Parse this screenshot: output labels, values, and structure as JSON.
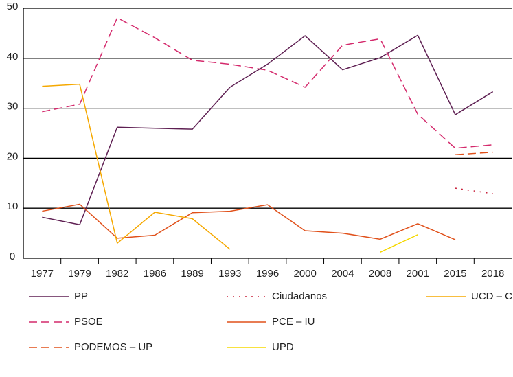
{
  "chart_data": {
    "type": "line",
    "categories": [
      "1977",
      "1979",
      "1982",
      "1986",
      "1989",
      "1993",
      "1996",
      "2000",
      "2004",
      "2008",
      "2001",
      "2015",
      "2018"
    ],
    "ylim": [
      0,
      50
    ],
    "yticks": [
      0,
      10,
      20,
      30,
      40,
      50
    ],
    "grid": true,
    "series": [
      {
        "name": "PP",
        "color": "#5e1f52",
        "style": "solid",
        "values": [
          8.2,
          6.7,
          26.2,
          26.0,
          25.8,
          34.2,
          38.8,
          44.5,
          37.7,
          40.1,
          44.6,
          28.7,
          33.3
        ]
      },
      {
        "name": "PSOE",
        "color": "#d42a6c",
        "style": "dashed",
        "values": [
          29.3,
          30.8,
          48.1,
          44.1,
          39.6,
          38.8,
          37.6,
          34.2,
          42.6,
          43.9,
          28.8,
          22.0,
          22.7
        ]
      },
      {
        "name": "PODEMOS – UP",
        "color": "#e0501a",
        "style": "dashed",
        "values": [
          null,
          null,
          null,
          null,
          null,
          null,
          null,
          null,
          null,
          null,
          null,
          20.7,
          21.2
        ]
      },
      {
        "name": "Ciudadanos",
        "color": "#c8203a",
        "style": "dotted",
        "values": [
          null,
          null,
          null,
          null,
          null,
          null,
          null,
          null,
          null,
          null,
          null,
          14.0,
          12.9
        ]
      },
      {
        "name": "PCE – IU",
        "color": "#e0501a",
        "style": "solid",
        "values": [
          9.4,
          10.8,
          4.0,
          4.6,
          9.1,
          9.4,
          10.7,
          5.5,
          5.0,
          3.8,
          6.9,
          3.7,
          null
        ]
      },
      {
        "name": "UPD",
        "color": "#f5d800",
        "style": "solid",
        "values": [
          null,
          null,
          null,
          null,
          null,
          null,
          null,
          null,
          null,
          1.2,
          4.7,
          null,
          null
        ]
      },
      {
        "name": "UCD – CDS",
        "color": "#f5a800",
        "style": "solid",
        "values": [
          34.4,
          34.8,
          3.0,
          9.2,
          7.9,
          1.8,
          null,
          null,
          null,
          null,
          null,
          null,
          null
        ]
      }
    ]
  }
}
